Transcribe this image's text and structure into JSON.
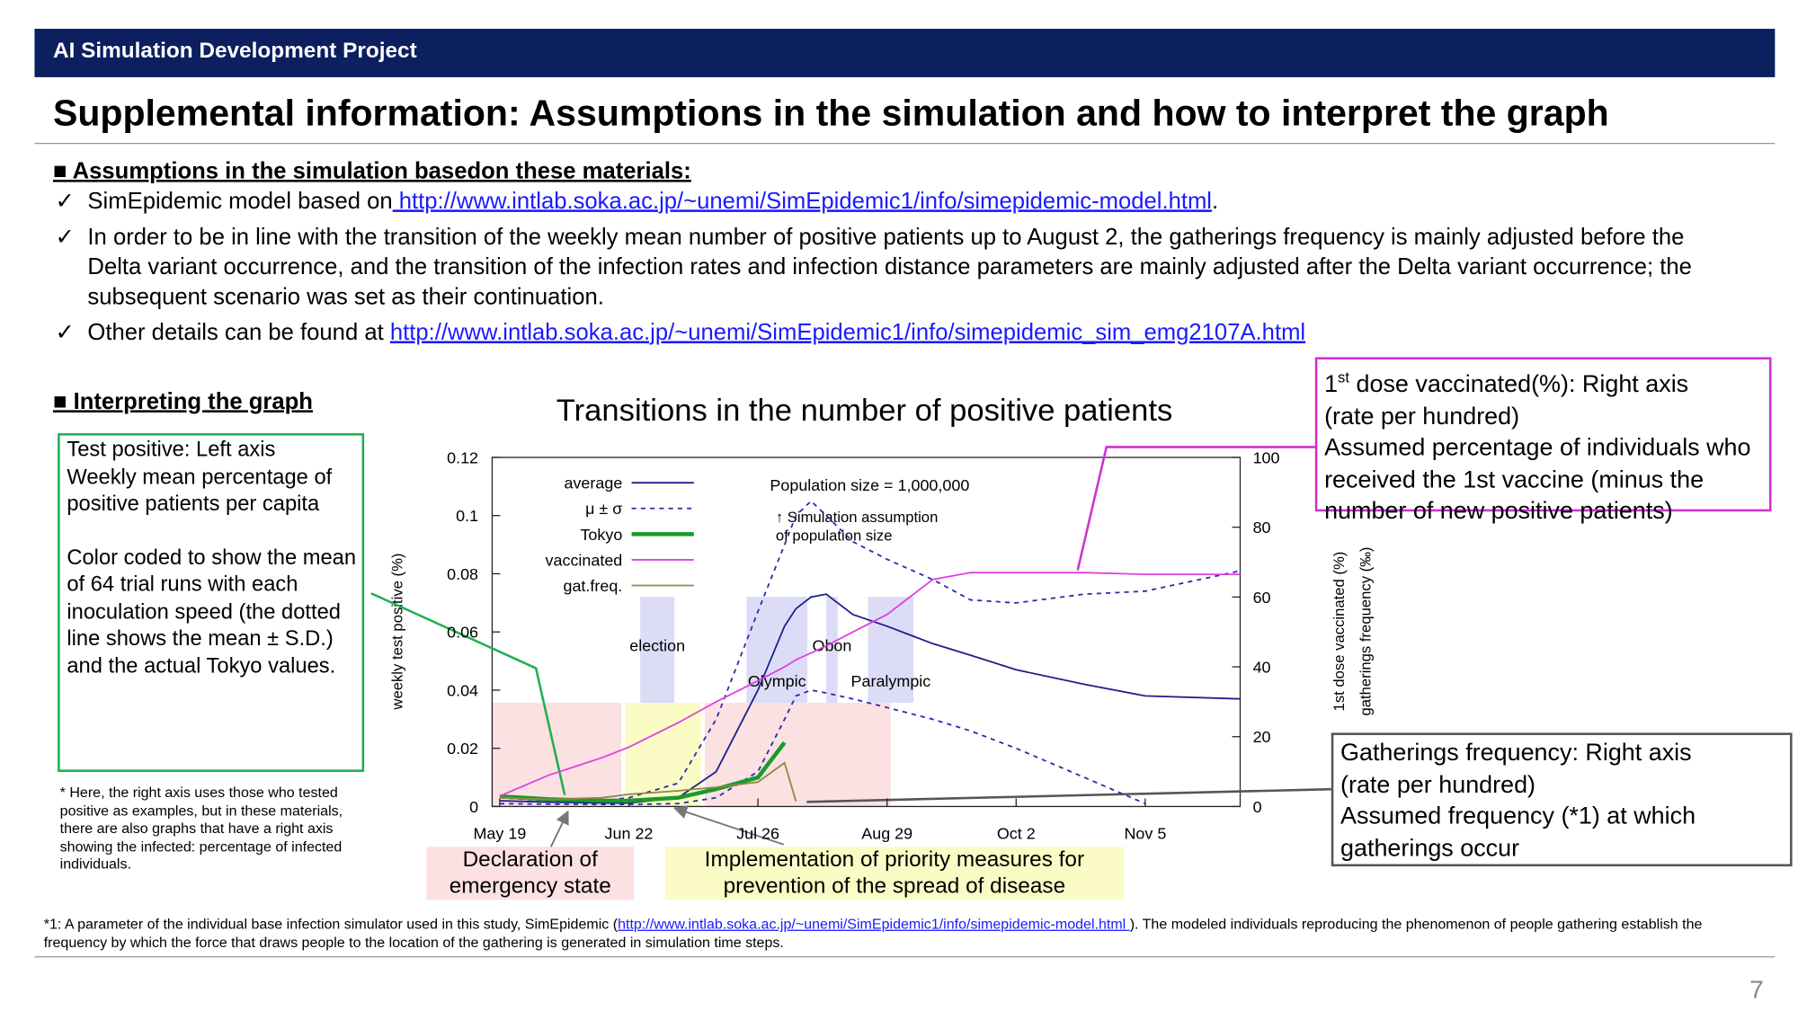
{
  "header": {
    "project": "AI Simulation Development Project"
  },
  "title": "Supplemental information: Assumptions in the simulation and how to interpret the graph",
  "assumptions": {
    "heading": "■ Assumptions in the simulation basedon these materials:",
    "bullet": "✓",
    "items": [
      {
        "text": "SimEpidemic model based on",
        "link": " http://www.intlab.soka.ac.jp/~unemi/SimEpidemic1/info/simepidemic-model.html",
        "after": "."
      },
      {
        "text": "In order to be in line with the transition of the weekly mean number of positive patients up to August 2, the gatherings frequency is mainly adjusted before the Delta variant occurrence, and the transition of the infection rates and infection distance parameters are mainly adjusted after the Delta variant occurrence; the subsequent scenario was set as their continuation."
      },
      {
        "text": "Other details can be found at ",
        "link": "http://www.intlab.soka.ac.jp/~unemi/SimEpidemic1/info/simepidemic_sim_emg2107A.html"
      }
    ]
  },
  "interpreting": {
    "heading": "■ Interpreting the graph"
  },
  "left_callout": {
    "paragraphs": [
      "Test positive: Left axis",
      "Weekly mean percentage of positive patients per capita",
      "Color coded to show the mean of 64 trial runs with each inoculation speed (the dotted line shows the mean ± S.D.) and the actual Tokyo values."
    ]
  },
  "note": "* Here, the right axis uses those who tested positive as examples, but in these materials, there are also graphs that have a right axis showing the infected: percentage of infected individuals.",
  "vacc_callout": {
    "num": "1",
    "sup": "st",
    "rest": " dose vaccinated(%): Right axis",
    "lines": [
      "(rate per hundred)",
      "Assumed percentage of individuals who received the 1st vaccine (minus the number of new positive patients)"
    ]
  },
  "gat_callout": {
    "lines": [
      "Gatherings frequency: Right axis",
      "(rate per hundred)",
      "Assumed frequency (*1) at which gatherings occur"
    ]
  },
  "emergency_label": "Declaration of emergency state",
  "priority_label": "Implementation of priority measures for prevention of the spread of disease",
  "footnote": {
    "before": "*1: A parameter of the individual base infection simulator used in this study, SimEpidemic (",
    "link": "http://www.intlab.soka.ac.jp/~unemi/SimEpidemic1/info/simepidemic-model.html ",
    "after": "). The modeled individuals reproducing the phenomenon of people gathering establish the frequency by which the force that draws people to the location of the gathering is generated in simulation time steps."
  },
  "page_number": 7,
  "chart_data": {
    "type": "line",
    "title": "Transitions in the number of positive patients",
    "y_label": "weekly test positive (%)",
    "y2_labels": [
      "1st dose vaccinated (%)",
      "gatherings frequency (‰)"
    ],
    "annotations": [
      "Population size = 1,000,000",
      "↑ Simulation assumption",
      "of population size"
    ],
    "xlim": [
      "May 17",
      "Nov 30"
    ],
    "xticks": [
      "May 19",
      "Jun 22",
      "Jul 26",
      "Aug 29",
      "Oct 2",
      "Nov 5"
    ],
    "ylim": [
      0,
      0.12
    ],
    "yticks": [
      0,
      0.02,
      0.04,
      0.06,
      0.08,
      0.1,
      0.12
    ],
    "y2lim": [
      0,
      100
    ],
    "y2ticks": [
      0,
      20,
      40,
      60,
      80,
      100
    ],
    "bands": [
      {
        "start": "May 17",
        "end": "Jun 20",
        "color": "#fbe1e1"
      },
      {
        "start": "Jun 21",
        "end": "Jul 11",
        "color": "#fbfbc6"
      },
      {
        "start": "Jul 12",
        "end": "Aug 30",
        "color": "#fbe1e1"
      }
    ],
    "periods": [
      {
        "label": "election",
        "start": "Jun 25",
        "end": "Jul 4"
      },
      {
        "label": "Olympic",
        "start": "Jul 23",
        "end": "Aug 8"
      },
      {
        "label": "Obon",
        "start": "Aug 13",
        "end": "Aug 16"
      },
      {
        "label": "Paralympic",
        "start": "Aug 24",
        "end": "Sep 5"
      }
    ],
    "period_color": "#dcdcf7",
    "x": [
      "May 19",
      "Jun 1",
      "Jun 15",
      "Jun 22",
      "Jul 5",
      "Jul 15",
      "Jul 26",
      "Aug 2",
      "Aug 5",
      "Aug 9",
      "Aug 13",
      "Aug 20",
      "Aug 29",
      "Sep 10",
      "Sep 20",
      "Oct 2",
      "Oct 20",
      "Nov 5",
      "Nov 30"
    ],
    "series": [
      {
        "name": "average",
        "color": "#1f1f8c",
        "values": [
          0.002,
          0.0015,
          0.0012,
          0.0012,
          0.003,
          0.012,
          0.04,
          0.062,
          0.068,
          0.072,
          0.073,
          0.066,
          0.062,
          0.056,
          0.052,
          0.047,
          0.042,
          0.038,
          0.037
        ]
      },
      {
        "name": "μ ± σ",
        "color": "#2a2ab0",
        "dashed": true,
        "values": [
          0.003,
          0.002,
          0.002,
          0.003,
          0.008,
          0.03,
          0.067,
          0.09,
          0.1,
          0.105,
          0.1,
          0.091,
          0.085,
          0.078,
          0.071,
          0.07,
          0.073,
          0.074,
          0.081
        ],
        "lower": [
          0.001,
          0.0008,
          0.0007,
          0.0007,
          0.001,
          0.003,
          0.012,
          0.03,
          0.038,
          0.04,
          0.039,
          0.037,
          0.034,
          0.03,
          0.026,
          0.02,
          0.01,
          0.001,
          null
        ]
      },
      {
        "name": "Tokyo",
        "color": "#1a9a2a",
        "width": 3.5,
        "values": [
          0.0035,
          0.0025,
          0.002,
          0.002,
          0.003,
          0.006,
          0.01,
          0.022,
          null,
          null,
          null,
          null,
          null,
          null,
          null,
          null,
          null,
          null,
          null
        ]
      },
      {
        "name": "vaccinated",
        "color": "#e040e0",
        "axis": "y2",
        "values": [
          3,
          9,
          14,
          17,
          24,
          30,
          36,
          40,
          42,
          44,
          46,
          50,
          55,
          65,
          67,
          67,
          67,
          66.5,
          66.5
        ]
      },
      {
        "name": "gat.freq.",
        "color": "#8a8a40",
        "axis": "y2",
        "values": [
          2.5,
          2,
          2.5,
          3.5,
          4.5,
          5.5,
          7,
          12.5,
          1.5,
          null,
          null,
          null,
          null,
          null,
          null,
          null,
          null,
          null,
          null
        ]
      }
    ]
  }
}
